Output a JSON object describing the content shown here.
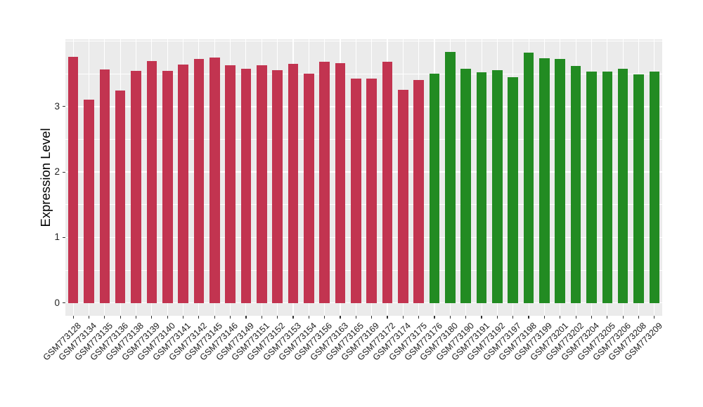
{
  "figure": {
    "background": "#FFFFFF",
    "panel_background": "#EBEBEB",
    "grid_color": "#FFFFFF",
    "tick_color": "#333333",
    "axis_text_color": "#1A1A1A"
  },
  "chart_data": {
    "type": "bar",
    "title": "",
    "xlabel": "",
    "ylabel": "Expression Level",
    "y_ticks": [
      0,
      1,
      2,
      3
    ],
    "y_minor_ticks": [
      0.5,
      1.5,
      2.5,
      3.5,
      4.0
    ],
    "ylim": [
      0,
      4.02
    ],
    "grid": "major+minor white on gray panel",
    "legend": "none",
    "group_colors": {
      "red": "#C23450",
      "green": "#228B22"
    },
    "bars": [
      {
        "label": "GSM773128",
        "value": 3.76,
        "group": "red"
      },
      {
        "label": "GSM773134",
        "value": 3.1,
        "group": "red"
      },
      {
        "label": "GSM773135",
        "value": 3.57,
        "group": "red"
      },
      {
        "label": "GSM773136",
        "value": 3.24,
        "group": "red"
      },
      {
        "label": "GSM773138",
        "value": 3.55,
        "group": "red"
      },
      {
        "label": "GSM773139",
        "value": 3.69,
        "group": "red"
      },
      {
        "label": "GSM773140",
        "value": 3.54,
        "group": "red"
      },
      {
        "label": "GSM773141",
        "value": 3.64,
        "group": "red"
      },
      {
        "label": "GSM773142",
        "value": 3.73,
        "group": "red"
      },
      {
        "label": "GSM773145",
        "value": 3.75,
        "group": "red"
      },
      {
        "label": "GSM773146",
        "value": 3.63,
        "group": "red"
      },
      {
        "label": "GSM773149",
        "value": 3.58,
        "group": "red"
      },
      {
        "label": "GSM773151",
        "value": 3.63,
        "group": "red"
      },
      {
        "label": "GSM773152",
        "value": 3.56,
        "group": "red"
      },
      {
        "label": "GSM773153",
        "value": 3.65,
        "group": "red"
      },
      {
        "label": "GSM773154",
        "value": 3.5,
        "group": "red"
      },
      {
        "label": "GSM773156",
        "value": 3.68,
        "group": "red"
      },
      {
        "label": "GSM773163",
        "value": 3.66,
        "group": "red"
      },
      {
        "label": "GSM773165",
        "value": 3.43,
        "group": "red"
      },
      {
        "label": "GSM773169",
        "value": 3.43,
        "group": "red"
      },
      {
        "label": "GSM773172",
        "value": 3.68,
        "group": "red"
      },
      {
        "label": "GSM773174",
        "value": 3.25,
        "group": "red"
      },
      {
        "label": "GSM773175",
        "value": 3.4,
        "group": "red"
      },
      {
        "label": "GSM773176",
        "value": 3.5,
        "group": "green"
      },
      {
        "label": "GSM773180",
        "value": 3.83,
        "group": "green"
      },
      {
        "label": "GSM773190",
        "value": 3.58,
        "group": "green"
      },
      {
        "label": "GSM773191",
        "value": 3.52,
        "group": "green"
      },
      {
        "label": "GSM773192",
        "value": 3.56,
        "group": "green"
      },
      {
        "label": "GSM773197",
        "value": 3.45,
        "group": "green"
      },
      {
        "label": "GSM773198",
        "value": 3.82,
        "group": "green"
      },
      {
        "label": "GSM773199",
        "value": 3.74,
        "group": "green"
      },
      {
        "label": "GSM773201",
        "value": 3.73,
        "group": "green"
      },
      {
        "label": "GSM773202",
        "value": 3.62,
        "group": "green"
      },
      {
        "label": "GSM773204",
        "value": 3.53,
        "group": "green"
      },
      {
        "label": "GSM773205",
        "value": 3.53,
        "group": "green"
      },
      {
        "label": "GSM773206",
        "value": 3.58,
        "group": "green"
      },
      {
        "label": "GSM773208",
        "value": 3.49,
        "group": "green"
      },
      {
        "label": "GSM773209",
        "value": 3.53,
        "group": "green"
      }
    ]
  }
}
